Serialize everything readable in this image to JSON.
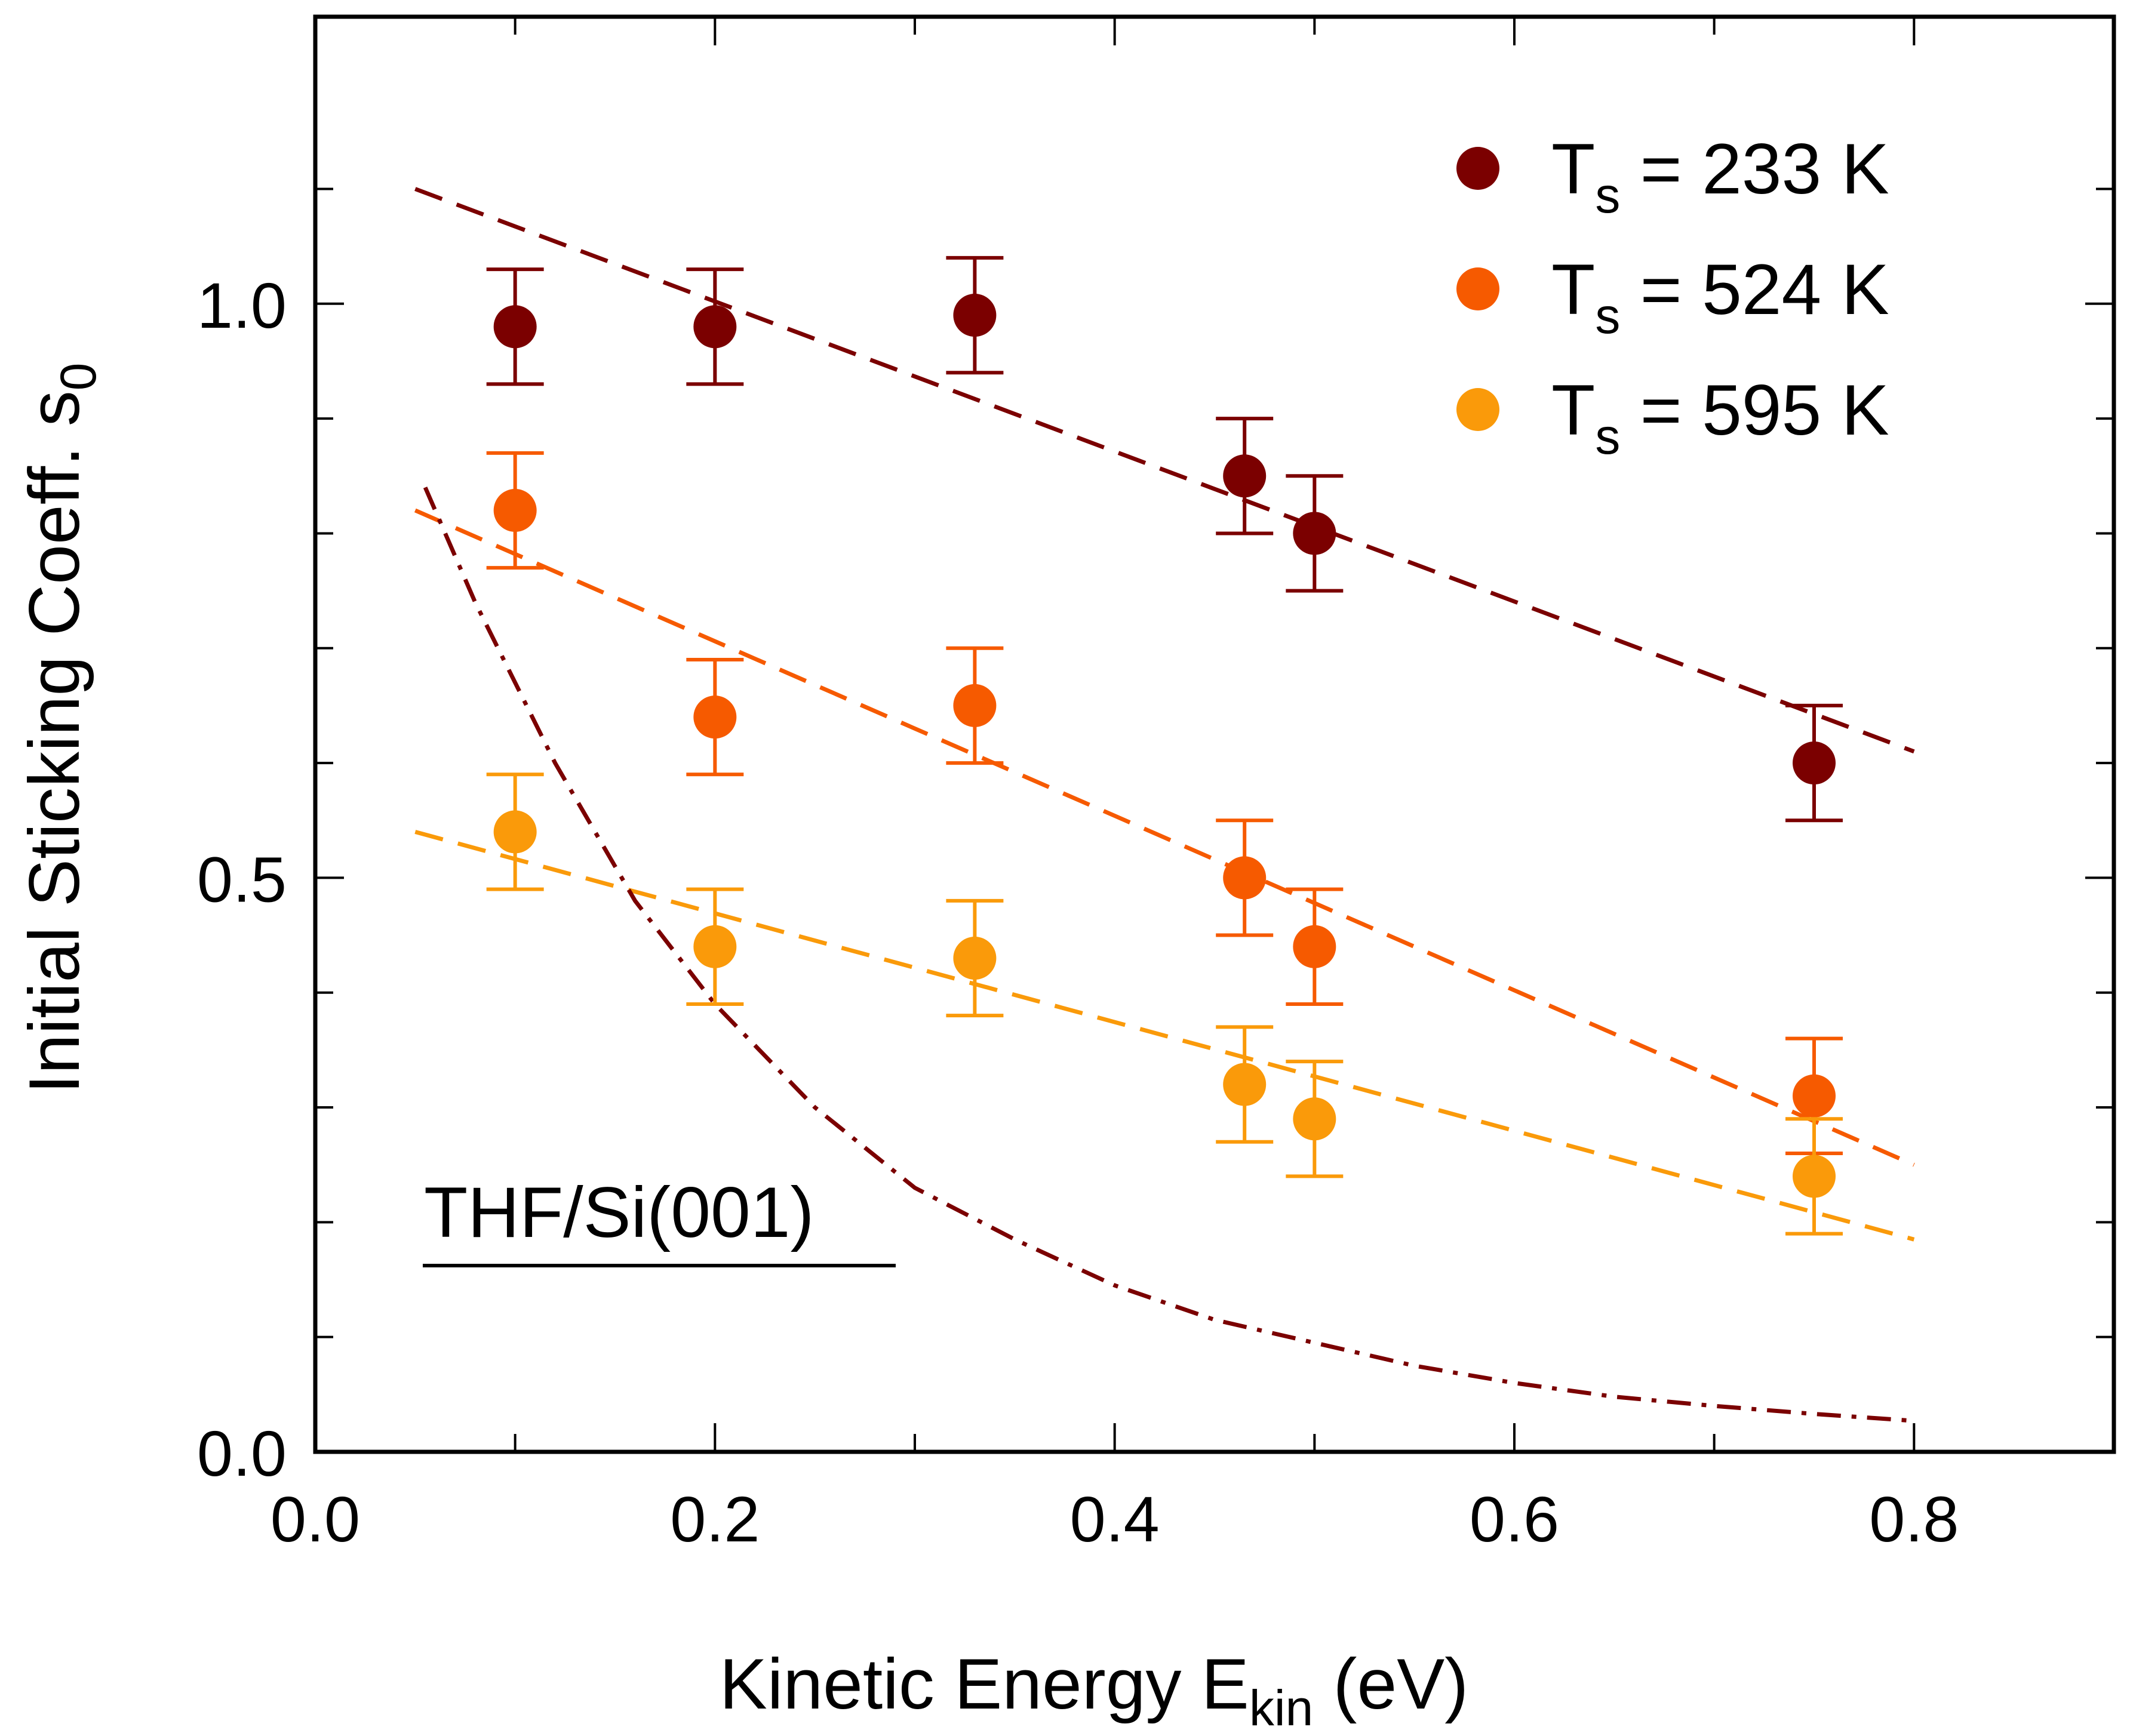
{
  "chart_data": {
    "type": "scatter",
    "xlabel": {
      "main": "Kinetic Energy E",
      "sub": "kin",
      "unit": " (eV)"
    },
    "ylabel": {
      "main": "Initial Sticking Coeff. s",
      "sub": "0"
    },
    "xlim": [
      0.0,
      0.9
    ],
    "ylim": [
      0.0,
      1.25
    ],
    "x_ticks": [
      0.0,
      0.2,
      0.4,
      0.6,
      0.8
    ],
    "x_tick_labels": [
      "0.0",
      "0.2",
      "0.4",
      "0.6",
      "0.8"
    ],
    "x_minor_ticks": [
      0.1,
      0.3,
      0.5,
      0.7
    ],
    "y_ticks": [
      0.0,
      0.5,
      1.0
    ],
    "y_tick_labels": [
      "0.0",
      "0.5",
      "1.0"
    ],
    "y_minor_ticks": [
      0.1,
      0.2,
      0.3,
      0.4,
      0.6,
      0.7,
      0.8,
      0.9,
      1.1
    ],
    "grid": false,
    "legend_position": "top-right",
    "annotation": "THF/Si(001)",
    "series": [
      {
        "name": "T_s = 233 K",
        "legend": {
          "prefix": "T",
          "sub": "s",
          "suffix": " = 233 K"
        },
        "color": "#7b0000",
        "x": [
          0.1,
          0.2,
          0.33,
          0.465,
          0.5,
          0.75
        ],
        "y": [
          0.98,
          0.98,
          0.99,
          0.85,
          0.8,
          0.6
        ],
        "err": [
          0.05,
          0.05,
          0.05,
          0.05,
          0.05,
          0.05
        ],
        "fit": {
          "style": "dashed",
          "x": [
            0.05,
            0.8
          ],
          "y": [
            1.1,
            0.61
          ]
        }
      },
      {
        "name": "T_s = 524 K",
        "legend": {
          "prefix": "T",
          "sub": "s",
          "suffix": " = 524 K"
        },
        "color": "#f65a00",
        "x": [
          0.1,
          0.2,
          0.33,
          0.465,
          0.5,
          0.75
        ],
        "y": [
          0.82,
          0.64,
          0.65,
          0.5,
          0.44,
          0.31
        ],
        "err": [
          0.05,
          0.05,
          0.05,
          0.05,
          0.05,
          0.05
        ],
        "fit": {
          "style": "dashed",
          "x": [
            0.05,
            0.8
          ],
          "y": [
            0.82,
            0.25
          ]
        }
      },
      {
        "name": "T_s = 595 K",
        "legend": {
          "prefix": "T",
          "sub": "s",
          "suffix": " = 595 K"
        },
        "color": "#fa9a0a",
        "x": [
          0.1,
          0.2,
          0.33,
          0.465,
          0.5,
          0.75
        ],
        "y": [
          0.54,
          0.44,
          0.43,
          0.32,
          0.29,
          0.24
        ],
        "err": [
          0.05,
          0.05,
          0.05,
          0.05,
          0.05,
          0.05
        ],
        "fit": {
          "style": "dashed",
          "x": [
            0.05,
            0.8
          ],
          "y": [
            0.54,
            0.185
          ]
        }
      }
    ],
    "extra_curves": [
      {
        "style": "dash-dot",
        "color": "#7b0000",
        "x": [
          0.055,
          0.08,
          0.12,
          0.16,
          0.2,
          0.25,
          0.3,
          0.35,
          0.4,
          0.45,
          0.5,
          0.55,
          0.6,
          0.65,
          0.7,
          0.75,
          0.8
        ],
        "y": [
          0.84,
          0.74,
          0.6,
          0.48,
          0.39,
          0.3,
          0.23,
          0.185,
          0.145,
          0.115,
          0.095,
          0.075,
          0.06,
          0.048,
          0.04,
          0.033,
          0.027
        ]
      }
    ]
  }
}
